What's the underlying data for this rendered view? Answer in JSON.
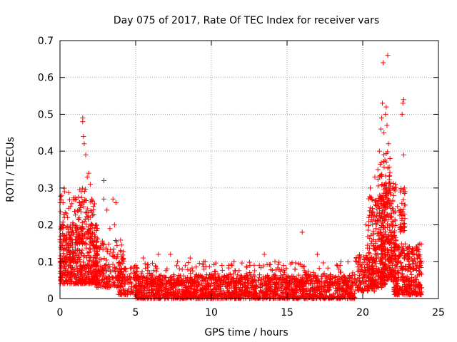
{
  "chart_data": {
    "type": "scatter",
    "title": "Day 075 of 2017, Rate Of TEC Index for receiver vars",
    "xlabel": "GPS time / hours",
    "ylabel": "ROTI / TECUs",
    "xlim": [
      0,
      25
    ],
    "ylim": [
      0,
      0.7
    ],
    "xticks": [
      0,
      5,
      10,
      15,
      20,
      25
    ],
    "yticks": [
      0,
      0.1,
      0.2,
      0.3,
      0.4,
      0.5,
      0.6,
      0.7
    ],
    "grid": true,
    "marker": "plus",
    "marker_color": "#ff0000",
    "grid_color": "#a0a0a0",
    "series": [
      {
        "name": "ROTI",
        "points": [
          [
            0.1,
            0.28
          ],
          [
            0.2,
            0.26
          ],
          [
            0.3,
            0.29
          ],
          [
            0.5,
            0.22
          ],
          [
            0.7,
            0.25
          ],
          [
            0.9,
            0.2
          ],
          [
            1.3,
            0.26
          ],
          [
            1.4,
            0.29
          ],
          [
            1.5,
            0.49
          ],
          [
            1.5,
            0.48
          ],
          [
            1.55,
            0.44
          ],
          [
            1.6,
            0.42
          ],
          [
            1.7,
            0.39
          ],
          [
            1.8,
            0.33
          ],
          [
            1.9,
            0.34
          ],
          [
            2.0,
            0.31
          ],
          [
            2.1,
            0.27
          ],
          [
            2.2,
            0.25
          ],
          [
            2.9,
            0.27
          ],
          [
            2.9,
            0.32
          ],
          [
            3.1,
            0.24
          ],
          [
            3.5,
            0.27
          ],
          [
            3.7,
            0.26
          ],
          [
            3.6,
            0.2
          ],
          [
            3.3,
            0.19
          ],
          [
            4.0,
            0.13
          ],
          [
            5.5,
            0.11
          ],
          [
            6.5,
            0.12
          ],
          [
            7.3,
            0.12
          ],
          [
            8.6,
            0.11
          ],
          [
            9.5,
            0.1
          ],
          [
            10.7,
            0.09
          ],
          [
            11.5,
            0.1
          ],
          [
            13.5,
            0.12
          ],
          [
            14.2,
            0.1
          ],
          [
            16.0,
            0.18
          ],
          [
            17.0,
            0.12
          ],
          [
            18.5,
            0.09
          ],
          [
            19.6,
            0.1
          ],
          [
            20.2,
            0.2
          ],
          [
            20.4,
            0.22
          ],
          [
            20.5,
            0.3
          ],
          [
            20.6,
            0.27
          ],
          [
            20.8,
            0.33
          ],
          [
            21.0,
            0.35
          ],
          [
            21.1,
            0.4
          ],
          [
            21.2,
            0.46
          ],
          [
            21.25,
            0.49
          ],
          [
            21.3,
            0.53
          ],
          [
            21.35,
            0.64
          ],
          [
            21.4,
            0.45
          ],
          [
            21.5,
            0.5
          ],
          [
            21.55,
            0.52
          ],
          [
            21.6,
            0.47
          ],
          [
            21.65,
            0.66
          ],
          [
            21.7,
            0.42
          ],
          [
            21.8,
            0.38
          ],
          [
            22.0,
            0.3
          ],
          [
            22.3,
            0.25
          ],
          [
            22.5,
            0.24
          ],
          [
            22.6,
            0.5
          ],
          [
            22.65,
            0.53
          ],
          [
            22.7,
            0.54
          ],
          [
            22.7,
            0.39
          ],
          [
            22.75,
            0.3
          ],
          [
            22.8,
            0.29
          ],
          [
            23.0,
            0.14
          ],
          [
            23.3,
            0.12
          ],
          [
            23.6,
            0.11
          ],
          [
            23.8,
            0.09
          ]
        ],
        "bands": [
          [
            0.0,
            2.5,
            0.04,
            0.2,
            460
          ],
          [
            0.0,
            1.5,
            0.1,
            0.3,
            90
          ],
          [
            1.2,
            2.3,
            0.15,
            0.3,
            70
          ],
          [
            2.3,
            4.2,
            0.03,
            0.16,
            200
          ],
          [
            3.8,
            5.2,
            0.01,
            0.09,
            110
          ],
          [
            5.0,
            19.5,
            0.0,
            0.065,
            1700
          ],
          [
            5.0,
            19.5,
            0.04,
            0.1,
            260
          ],
          [
            19.5,
            20.8,
            0.02,
            0.12,
            140
          ],
          [
            20.3,
            21.5,
            0.03,
            0.28,
            260
          ],
          [
            21.2,
            22.2,
            0.05,
            0.32,
            260
          ],
          [
            21.0,
            21.8,
            0.25,
            0.4,
            50
          ],
          [
            22.0,
            23.9,
            0.01,
            0.15,
            340
          ],
          [
            22.4,
            22.8,
            0.18,
            0.3,
            40
          ]
        ]
      }
    ]
  }
}
